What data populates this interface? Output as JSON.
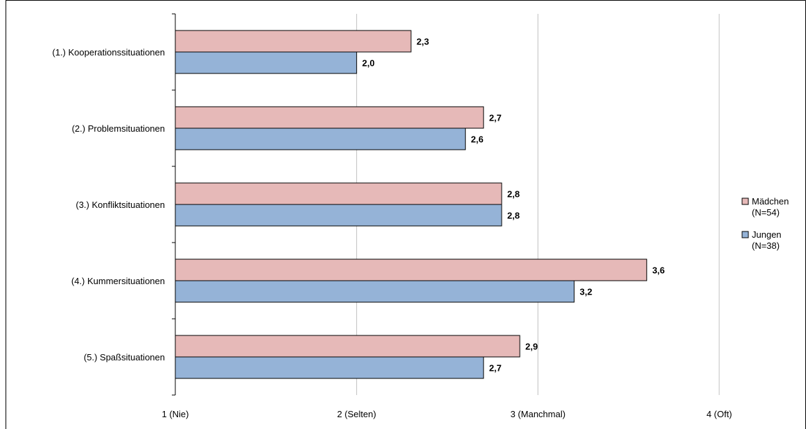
{
  "chart_data": {
    "type": "bar",
    "orientation": "horizontal",
    "categories": [
      "(1.) Kooperationssituationen",
      "(2.) Problemsituationen",
      "(3.) Konfliktsituationen",
      "(4.) Kummersituationen",
      "(5.) Spaßsituationen"
    ],
    "series": [
      {
        "name": "Mädchen (N=54)",
        "legend_lines": [
          "Mädchen",
          "(N=54)"
        ],
        "color": "#e6b9b8",
        "values": [
          2.3,
          2.7,
          2.8,
          3.6,
          2.9
        ],
        "labels": [
          "2,3",
          "2,7",
          "2,8",
          "3,6",
          "2,9"
        ]
      },
      {
        "name": "Jungen (N=38)",
        "legend_lines": [
          "Jungen",
          "(N=38)"
        ],
        "color": "#95b3d7",
        "values": [
          2.0,
          2.6,
          2.8,
          3.2,
          2.7
        ],
        "labels": [
          "2,0",
          "2,6",
          "2,8",
          "3,2",
          "2,7"
        ]
      }
    ],
    "x_ticks": [
      {
        "value": 1,
        "label": "1 (Nie)"
      },
      {
        "value": 2,
        "label": "2 (Selten)"
      },
      {
        "value": 3,
        "label": "3 (Manchmal)"
      },
      {
        "value": 4,
        "label": "4 (Oft)"
      }
    ],
    "xlim": [
      1,
      4
    ],
    "grid": true,
    "legend_position": "right"
  }
}
